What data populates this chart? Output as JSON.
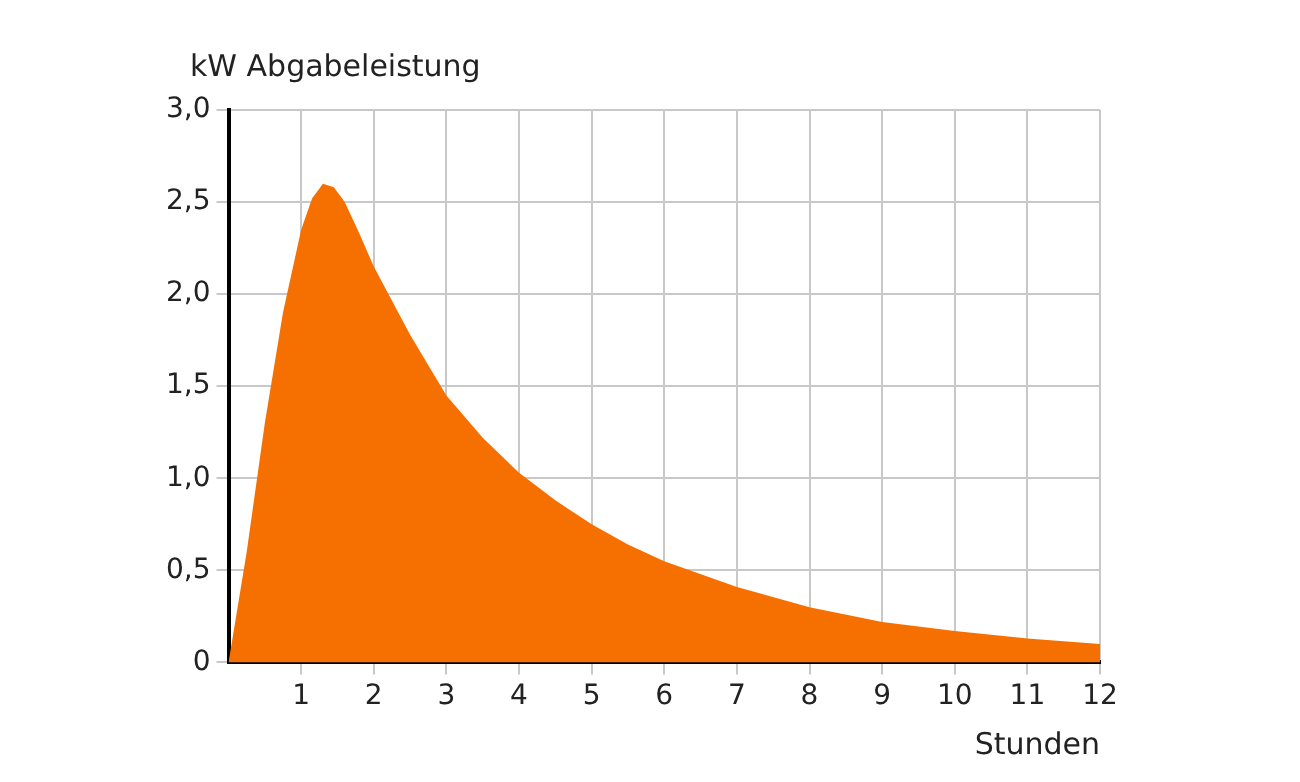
{
  "chart_data": {
    "type": "area",
    "ylabel": "kW Abgabeleistung",
    "xlabel": "Stunden",
    "x": [
      0,
      0.25,
      0.5,
      0.75,
      1,
      1.15,
      1.3,
      1.45,
      1.6,
      1.8,
      2,
      2.5,
      3,
      3.5,
      4,
      4.5,
      5,
      5.5,
      6,
      7,
      8,
      9,
      10,
      11,
      12
    ],
    "series": [
      {
        "color": "#f57000",
        "values": [
          0,
          0.6,
          1.3,
          1.9,
          2.35,
          2.52,
          2.6,
          2.58,
          2.5,
          2.33,
          2.15,
          1.78,
          1.45,
          1.22,
          1.03,
          0.88,
          0.75,
          0.64,
          0.55,
          0.41,
          0.3,
          0.22,
          0.17,
          0.13,
          0.1
        ]
      }
    ],
    "xlim": [
      0,
      12
    ],
    "xticks": [
      1,
      2,
      3,
      4,
      5,
      6,
      7,
      8,
      9,
      10,
      11,
      12
    ],
    "ylim": [
      0,
      3
    ],
    "yticks": [
      0,
      {
        "value": 0.5,
        "label": "0,5"
      },
      {
        "value": 1,
        "label": "1,0"
      },
      {
        "value": 1.5,
        "label": "1,5"
      },
      {
        "value": 2,
        "label": "2,0"
      },
      {
        "value": 2.5,
        "label": "2,5"
      },
      {
        "value": 3,
        "label": "3,0"
      }
    ],
    "grid": true,
    "legend": false,
    "marker": "none"
  }
}
